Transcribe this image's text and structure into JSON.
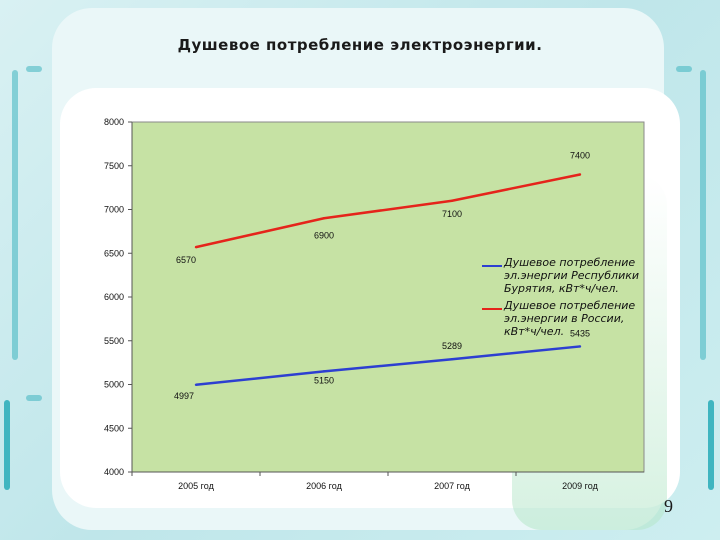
{
  "slide": {
    "title": "Душевое потребление электроэнергии.",
    "page_number": "9"
  },
  "colors": {
    "plot_bg": "#c6e2a4",
    "series_buryatia": "#e5241b",
    "series_russia": "#2d3fd1",
    "accent": "#3fb5c0"
  },
  "chart_data": {
    "type": "line",
    "title": "",
    "xlabel": "",
    "ylabel": "",
    "categories": [
      "2005 год",
      "2006 год",
      "2007 год",
      "2009 год"
    ],
    "ylim": [
      4000,
      8000
    ],
    "yticks": [
      "4000",
      "4500",
      "5000",
      "5500",
      "6000",
      "6500",
      "7000",
      "7500",
      "8000"
    ],
    "grid": false,
    "legend_position": "right",
    "series": [
      {
        "name": "Душевое потребление эл.энергии Республики Бурятия, кВт*ч/чел.",
        "color": "#2d3fd1",
        "values": [
          4997,
          5150,
          5289,
          5435
        ],
        "labels": [
          "4997",
          "5150",
          "5289",
          "5435"
        ]
      },
      {
        "name": "Душевое потребление эл.энергии в России, кВт*ч/чел.",
        "color": "#e5241b",
        "values": [
          6570,
          6900,
          7100,
          7400
        ],
        "labels": [
          "6570",
          "6900",
          "7100",
          "7400"
        ]
      }
    ]
  }
}
